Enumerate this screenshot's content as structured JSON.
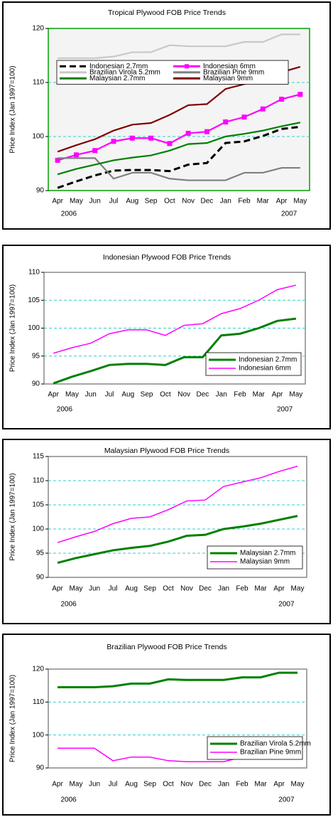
{
  "chart_data": [
    {
      "type": "line",
      "title": "Tropical Plywood FOB Price Trends",
      "y_label": "Price Index (Jan 1997=100)",
      "categories": [
        "Apr",
        "May",
        "Jun",
        "Jul",
        "Aug",
        "Sep",
        "Oct",
        "Nov",
        "Dec",
        "Jan",
        "Feb",
        "Mar",
        "Apr",
        "May"
      ],
      "year_labels": [
        "2006",
        "2007"
      ],
      "ylim": [
        90,
        120
      ],
      "yticks": [
        90,
        100,
        110,
        120
      ],
      "grid": true,
      "legend": "upper left",
      "series": [
        {
          "name": "Indonesian 2.7mm",
          "color": "#000000",
          "line_style": "dashed",
          "values": [
            90.5,
            91.7,
            92.8,
            93.7,
            93.8,
            93.8,
            93.6,
            94.8,
            95.1,
            98.8,
            99.1,
            100.1,
            101.4,
            101.8
          ]
        },
        {
          "name": "Indonesian 6mm",
          "color": "#ff00ff",
          "marker": "square",
          "values": [
            95.6,
            96.6,
            97.4,
            99.1,
            99.7,
            99.7,
            98.7,
            100.6,
            100.9,
            102.7,
            103.6,
            105.1,
            106.9,
            107.8
          ]
        },
        {
          "name": "Brazilian Virola 5.2mm",
          "color": "#c8c8c8",
          "values": [
            114.5,
            114.5,
            114.5,
            114.8,
            115.6,
            115.6,
            116.9,
            116.7,
            116.7,
            116.7,
            117.5,
            117.5,
            118.9,
            118.9
          ]
        },
        {
          "name": "Brazilian Pine 9mm",
          "color": "#808080",
          "values": [
            96,
            96,
            96,
            92.2,
            93.3,
            93.3,
            92.2,
            91.9,
            91.9,
            91.9,
            93.3,
            93.3,
            94.2,
            94.2
          ]
        },
        {
          "name": "Malaysian 2.7mm",
          "color": "#008000",
          "values": [
            93,
            94,
            94.8,
            95.6,
            96.1,
            96.5,
            97.4,
            98.6,
            98.8,
            100,
            100.5,
            101.1,
            101.9,
            102.6
          ]
        },
        {
          "name": "Malaysian 9mm",
          "color": "#800000",
          "values": [
            97.2,
            98.4,
            99.5,
            101.1,
            102.2,
            102.5,
            104,
            105.8,
            106,
            108.8,
            109.7,
            110.4,
            111.9,
            112.9
          ]
        }
      ]
    },
    {
      "type": "line",
      "title": "Indonesian Plywood FOB Price Trends",
      "y_label": "Price Index (Jan 1997=100)",
      "categories": [
        "Apr",
        "May",
        "Jun",
        "Jul",
        "Aug",
        "Sep",
        "Oct",
        "Nov",
        "Dec",
        "Jan",
        "Feb",
        "Mar",
        "Apr",
        "May"
      ],
      "year_labels": [
        "2006",
        "2007"
      ],
      "ylim": [
        90,
        110
      ],
      "yticks": [
        90,
        95,
        100,
        105,
        110
      ],
      "grid": true,
      "legend": "lower right",
      "series": [
        {
          "name": "Indonesian 2.7mm",
          "color": "#008000",
          "values": [
            90.1,
            91.3,
            92.3,
            93.4,
            93.6,
            93.6,
            93.4,
            94.8,
            94.8,
            98.7,
            99.0,
            100.0,
            101.3,
            101.7
          ]
        },
        {
          "name": "Indonesian 6mm",
          "color": "#ff00ff",
          "values": [
            95.5,
            96.5,
            97.3,
            99.0,
            99.7,
            99.7,
            98.7,
            100.5,
            100.8,
            102.6,
            103.5,
            105.0,
            106.9,
            107.7
          ]
        }
      ]
    },
    {
      "type": "line",
      "title": "Malaysian Plywood FOB Price Trends",
      "y_label": "Price Index (Jan 1997=100)",
      "categories": [
        "Apr",
        "May",
        "Jun",
        "Jul",
        "Aug",
        "Sep",
        "Oct",
        "Nov",
        "Dec",
        "Jan",
        "Feb",
        "Mar",
        "Apr",
        "May"
      ],
      "year_labels": [
        "2006",
        "2007"
      ],
      "ylim": [
        90,
        115
      ],
      "yticks": [
        90,
        95,
        100,
        105,
        110,
        115
      ],
      "grid": true,
      "legend": "lower right",
      "series": [
        {
          "name": "Malaysian 2.7mm",
          "color": "#008000",
          "values": [
            93,
            94,
            94.8,
            95.6,
            96.1,
            96.5,
            97.4,
            98.6,
            98.8,
            100,
            100.5,
            101.1,
            101.9,
            102.7
          ]
        },
        {
          "name": "Malaysian 9mm",
          "color": "#ff00ff",
          "values": [
            97.2,
            98.4,
            99.5,
            101.1,
            102.2,
            102.5,
            104,
            105.8,
            106,
            108.8,
            109.7,
            110.6,
            111.9,
            113
          ]
        }
      ]
    },
    {
      "type": "line",
      "title": "Brazilian Plywood FOB Price Trends",
      "y_label": "Price Index (Jan 1997=100)",
      "categories": [
        "Apr",
        "May",
        "Jun",
        "Jul",
        "Aug",
        "Sep",
        "Oct",
        "Nov",
        "Dec",
        "Jan",
        "Feb",
        "Mar",
        "Apr",
        "May"
      ],
      "year_labels": [
        "2006",
        "2007"
      ],
      "ylim": [
        90,
        120
      ],
      "yticks": [
        90,
        100,
        110,
        120
      ],
      "grid": true,
      "legend": "lower right",
      "series": [
        {
          "name": "Brazilian Virola 5.2mm",
          "color": "#008000",
          "values": [
            114.5,
            114.5,
            114.5,
            114.8,
            115.6,
            115.6,
            116.9,
            116.7,
            116.7,
            116.7,
            117.5,
            117.5,
            118.9,
            118.9
          ]
        },
        {
          "name": "Brazilian Pine 9mm",
          "color": "#ff00ff",
          "values": [
            96,
            96,
            96,
            92.2,
            93.3,
            93.3,
            92.2,
            91.9,
            91.9,
            91.9,
            93.3,
            93.3,
            94.2,
            94.2
          ]
        }
      ]
    }
  ]
}
